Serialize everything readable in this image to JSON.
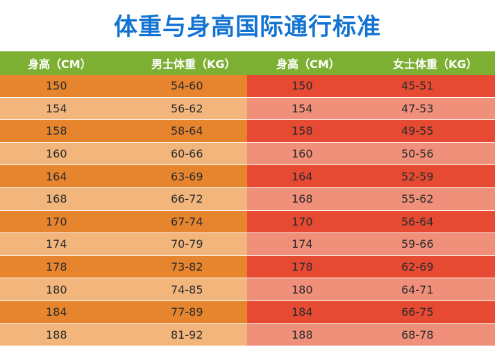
{
  "title": "体重与身高国际通行标准",
  "headers": [
    "身高（CM）",
    "男士体重（KG）",
    "身高（CM）",
    "女士体重（KG）"
  ],
  "rows": [
    [
      "150",
      "54-60",
      "150",
      "45-51"
    ],
    [
      "154",
      "56-62",
      "154",
      "47-53"
    ],
    [
      "158",
      "58-64",
      "158",
      "49-55"
    ],
    [
      "160",
      "60-66",
      "160",
      "50-56"
    ],
    [
      "164",
      "63-69",
      "164",
      "52-59"
    ],
    [
      "168",
      "66-72",
      "168",
      "55-62"
    ],
    [
      "170",
      "67-74",
      "170",
      "56-64"
    ],
    [
      "174",
      "70-79",
      "174",
      "59-66"
    ],
    [
      "178",
      "73-82",
      "178",
      "62-69"
    ],
    [
      "180",
      "74-85",
      "180",
      "64-71"
    ],
    [
      "184",
      "77-89",
      "184",
      "66-75"
    ],
    [
      "188",
      "81-92",
      "188",
      "68-78"
    ]
  ],
  "colors": {
    "title": "#1273d2",
    "header_bg": "#7db032",
    "left_dark": "#e7852f",
    "left_light": "#f2b57c",
    "right_dark": "#e74a32",
    "right_light": "#f0907a"
  }
}
